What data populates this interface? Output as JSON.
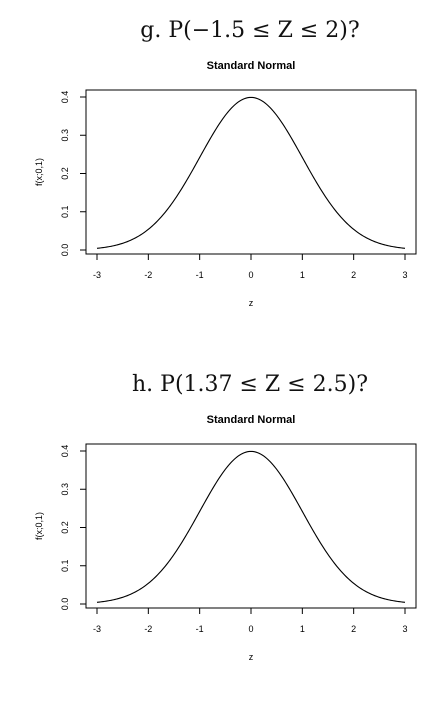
{
  "questions": [
    {
      "text": "g. P(−1.5 ≤ Z ≤ 2)?"
    },
    {
      "text": "h. P(1.37 ≤ Z ≤ 2.5)?"
    }
  ],
  "chart_data": [
    {
      "type": "line",
      "title": "Standard Normal",
      "xlabel": "z",
      "ylabel": "f(x;0,1)",
      "xlim": [
        -3,
        3
      ],
      "ylim": [
        0,
        0.4
      ],
      "xticks": [
        -3,
        -2,
        -1,
        0,
        1,
        2,
        3
      ],
      "yticks": [
        0.0,
        0.1,
        0.2,
        0.3,
        0.4
      ],
      "ytick_labels": [
        "0.0",
        "0.1",
        "0.2",
        "0.3",
        "0.4"
      ],
      "series": [
        {
          "x": [
            -3,
            -2.5,
            -2,
            -1.5,
            -1,
            -0.5,
            0,
            0.5,
            1,
            1.5,
            2,
            2.5,
            3
          ],
          "y": [
            0.0044,
            0.0175,
            0.054,
            0.1295,
            0.242,
            0.3521,
            0.3989,
            0.3521,
            0.242,
            0.1295,
            0.054,
            0.0175,
            0.0044
          ]
        }
      ],
      "grid": false
    },
    {
      "type": "line",
      "title": "Standard Normal",
      "xlabel": "z",
      "ylabel": "f(x;0,1)",
      "xlim": [
        -3,
        3
      ],
      "ylim": [
        0,
        0.4
      ],
      "xticks": [
        -3,
        -2,
        -1,
        0,
        1,
        2,
        3
      ],
      "yticks": [
        0.0,
        0.1,
        0.2,
        0.3,
        0.4
      ],
      "ytick_labels": [
        "0.0",
        "0.1",
        "0.2",
        "0.3",
        "0.4"
      ],
      "series": [
        {
          "x": [
            -3,
            -2.5,
            -2,
            -1.5,
            -1,
            -0.5,
            0,
            0.5,
            1,
            1.5,
            2,
            2.5,
            3
          ],
          "y": [
            0.0044,
            0.0175,
            0.054,
            0.1295,
            0.242,
            0.3521,
            0.3989,
            0.3521,
            0.242,
            0.1295,
            0.054,
            0.0175,
            0.0044
          ]
        }
      ],
      "grid": false
    }
  ]
}
